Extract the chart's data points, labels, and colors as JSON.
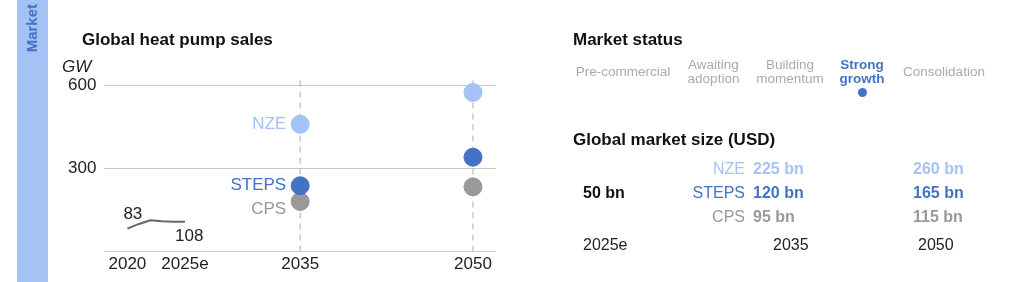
{
  "chart_data": [
    {
      "type": "scatter",
      "title": "Global heat pump sales",
      "ylabel": "GW",
      "annotations": [
        "Market"
      ],
      "xlim": [
        2018,
        2052
      ],
      "xticks": [
        {
          "value": 2020,
          "label": "2020"
        },
        {
          "value": 2025,
          "label": "2025e"
        },
        2035,
        2050
      ],
      "ylim": [
        0,
        620
      ],
      "yticks": [
        {
          "value": 0,
          "label": null
        },
        300,
        600
      ],
      "grid": "y",
      "legend": false,
      "marker": "circle",
      "ref_lines": [
        {
          "axis": "x",
          "value": 2035,
          "color": "#bbbbbb",
          "line_style": "dashed"
        },
        {
          "axis": "x",
          "value": 2050,
          "color": "#bbbbbb",
          "line_style": "dashed"
        }
      ],
      "series": [
        {
          "type": "line",
          "marker": "none",
          "color": "#666666",
          "x": [
            2020,
            2021,
            2022,
            2023,
            2024,
            2025
          ],
          "values": [
            83,
            100,
            113,
            110,
            108,
            108
          ],
          "value_labels": [
            "83",
            null,
            null,
            null,
            null,
            "108"
          ]
        },
        {
          "name": "NZE",
          "color": "#a4c2f4",
          "x": [
            2035,
            2050
          ],
          "values": [
            460,
            575
          ]
        },
        {
          "name": "STEPS",
          "color": "#4472c4",
          "x": [
            2035,
            2050
          ],
          "values": [
            238,
            341
          ]
        },
        {
          "name": "CPS",
          "color": "#999999",
          "x": [
            2035,
            2050
          ],
          "values": [
            181,
            234
          ]
        }
      ]
    },
    {
      "type": "other",
      "title": "Market status",
      "categories": [
        "Pre-commercial",
        "Awaiting adoption",
        "Building momentum",
        "Strong growth",
        "Consolidation"
      ],
      "colors": [
        "#aaaaaa",
        "#aaaaaa",
        "#aaaaaa",
        "#4472c4",
        "#aaaaaa"
      ]
    },
    {
      "type": "other",
      "title": "Global market size (USD)",
      "categories": [
        "2025e",
        "2035",
        "2050"
      ],
      "series": [
        {
          "color": "#111111",
          "values": [
            50,
            null,
            null
          ],
          "value_labels": [
            "50 bn",
            null,
            null
          ]
        },
        {
          "name": "NZE",
          "color": "#a4c2f4",
          "values": [
            null,
            225,
            260
          ],
          "value_labels": [
            null,
            "225 bn",
            "260 bn"
          ]
        },
        {
          "name": "STEPS",
          "color": "#4472c4",
          "values": [
            null,
            120,
            165
          ],
          "value_labels": [
            null,
            "120 bn",
            "165 bn"
          ]
        },
        {
          "name": "CPS",
          "color": "#999999",
          "values": [
            null,
            95,
            115
          ],
          "value_labels": [
            null,
            "95 bn",
            "115 bn"
          ]
        }
      ]
    }
  ]
}
